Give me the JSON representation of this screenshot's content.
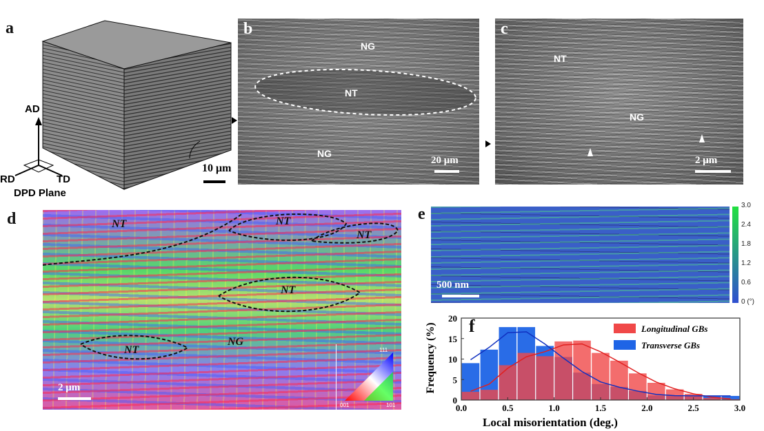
{
  "panels": {
    "a": {
      "label": "a",
      "axes": {
        "up": "AD",
        "left": "RD",
        "right": "TD",
        "plane": "DPD Plane"
      },
      "scale": "10 μm"
    },
    "b": {
      "label": "b",
      "regions": [
        "NG",
        "NT",
        "NG"
      ],
      "scale": "20 μm"
    },
    "c": {
      "label": "c",
      "regions": [
        "NT",
        "NG"
      ],
      "scale": "2 μm"
    },
    "d": {
      "label": "d",
      "regions": [
        "NT",
        "NT",
        "NT",
        "NT",
        "NT",
        "NG"
      ],
      "scale": "2 μm",
      "ipf": {
        "top": "111",
        "left": "001",
        "right": "101"
      }
    },
    "e": {
      "label": "e",
      "scale": "500 nm",
      "colorbar": {
        "ticks": [
          "3.0",
          "2.4",
          "1.8",
          "1.2",
          "0.6",
          "0 (°)"
        ],
        "colors": [
          "#2f4fd0",
          "#22e040"
        ]
      }
    },
    "f": {
      "label": "f"
    }
  },
  "chart_data": {
    "type": "bar",
    "xlabel": "Local misorientation (deg.)",
    "ylabel": "Frequency (%)",
    "xlim": [
      0,
      3.0
    ],
    "ylim": [
      0,
      20
    ],
    "xticks": [
      "0.0",
      "0.5",
      "1.0",
      "1.5",
      "2.0",
      "2.5",
      "3.0"
    ],
    "yticks": [
      "0",
      "5",
      "10",
      "15",
      "20"
    ],
    "legend_position": "top-right",
    "x": [
      0.1,
      0.3,
      0.5,
      0.7,
      0.9,
      1.1,
      1.3,
      1.5,
      1.7,
      1.9,
      2.1,
      2.3,
      2.5,
      2.7,
      2.9
    ],
    "series": [
      {
        "name": "Longitudinal GBs",
        "color": "#f04848",
        "values": [
          2.0,
          2.5,
          8.5,
          11.5,
          10.7,
          14.3,
          14.5,
          11.5,
          9.6,
          6.5,
          4.2,
          2.6,
          1.5,
          0.5,
          0.2
        ]
      },
      {
        "name": "Transverse GBs",
        "color": "#1e64e6",
        "values": [
          9.0,
          12.3,
          17.8,
          17.8,
          13.2,
          10.5,
          6.7,
          3.9,
          3.2,
          2.2,
          1.1,
          1.1,
          1.0,
          1.0,
          1.0
        ]
      }
    ]
  }
}
